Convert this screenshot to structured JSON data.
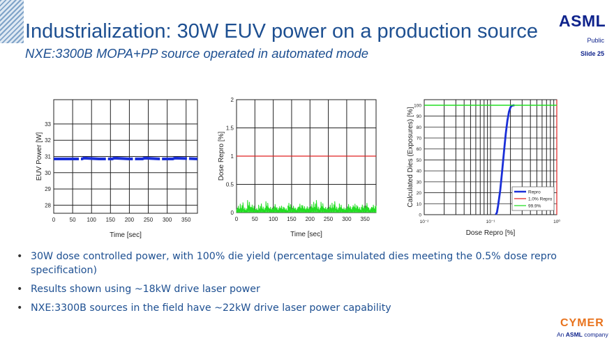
{
  "header": {
    "title": "Industrialization: 30W EUV power on a production source",
    "subtitle": "NXE:3300B MOPA+PP source operated in automated mode",
    "logo": "ASML",
    "classification": "Public",
    "slide_number": "Slide 25"
  },
  "colors": {
    "title": "#1d4f91",
    "power_trace": "#1a2fd8",
    "spec_line": "#e02020",
    "dose_noise": "#22dd22",
    "cymer_orange": "#e8731e"
  },
  "chart_data": [
    {
      "type": "line",
      "xlabel": "Time [sec]",
      "ylabel": "EUV Power  [W]",
      "xlim": [
        0,
        380
      ],
      "ylim": [
        27.5,
        34.5
      ],
      "x_ticks": [
        0,
        50,
        100,
        150,
        200,
        250,
        300,
        350
      ],
      "y_ticks": [
        28,
        29,
        30,
        31,
        32,
        33
      ],
      "series": [
        {
          "x": [
            0,
            40,
            75,
            80,
            120,
            155,
            160,
            200,
            235,
            240,
            280,
            315,
            320,
            380
          ],
          "values": [
            30.85,
            30.85,
            30.85,
            30.9,
            30.85,
            30.85,
            30.9,
            30.85,
            30.85,
            30.9,
            30.85,
            30.85,
            30.9,
            30.85
          ]
        }
      ]
    },
    {
      "type": "line",
      "xlabel": "Time [sec]",
      "ylabel": "Dose Repro [%]",
      "xlim": [
        0,
        380
      ],
      "ylim": [
        0,
        2
      ],
      "x_ticks": [
        0,
        50,
        100,
        150,
        200,
        250,
        300,
        350
      ],
      "y_ticks": [
        0,
        0.5,
        1,
        1.5,
        2
      ],
      "series": [
        {
          "x": [
            0,
            380
          ],
          "values": [
            1,
            1
          ]
        },
        {
          "x": [
            0,
            10,
            20,
            30,
            40,
            50,
            60,
            70,
            80,
            90,
            100,
            110,
            120,
            130,
            140,
            150,
            160,
            170,
            180,
            190,
            200,
            210,
            220,
            230,
            240,
            250,
            260,
            270,
            280,
            290,
            300,
            310,
            320,
            330,
            340,
            350,
            360,
            370,
            380
          ],
          "values": [
            0.12,
            0.18,
            0.1,
            0.22,
            0.14,
            0.08,
            0.16,
            0.12,
            0.2,
            0.1,
            0.15,
            0.11,
            0.14,
            0.09,
            0.17,
            0.12,
            0.1,
            0.18,
            0.13,
            0.11,
            0.15,
            0.22,
            0.12,
            0.19,
            0.1,
            0.14,
            0.2,
            0.12,
            0.16,
            0.09,
            0.15,
            0.13,
            0.18,
            0.11,
            0.14,
            0.17,
            0.1,
            0.16,
            0.12
          ]
        }
      ]
    },
    {
      "type": "line",
      "xlabel": "Dose Repro [%]",
      "ylabel": "Calculated  Dies (Exposures) [%]",
      "x_scale": "log",
      "xlim": [
        0.01,
        1
      ],
      "ylim": [
        0,
        105
      ],
      "x_ticks": [
        "10⁻²",
        "10⁻¹",
        "10⁰"
      ],
      "y_ticks": [
        0,
        10,
        20,
        30,
        40,
        50,
        60,
        70,
        80,
        90,
        100
      ],
      "legend": {
        "placement": "bottom-right",
        "entries": [
          "Repro",
          "1.0% Repro",
          "99.9%"
        ]
      },
      "series": [
        {
          "name": "Repro",
          "x": [
            0.12,
            0.125,
            0.13,
            0.14,
            0.15,
            0.16,
            0.17,
            0.18,
            0.19,
            0.2,
            0.21,
            0.23
          ],
          "values": [
            0,
            2,
            8,
            22,
            40,
            58,
            74,
            86,
            94,
            98,
            99.5,
            100
          ]
        },
        {
          "name": "1.0% Repro",
          "x": [
            1,
            1
          ],
          "values": [
            0,
            105
          ]
        },
        {
          "name": "99.9%",
          "x": [
            0.01,
            1
          ],
          "values": [
            99.9,
            99.9
          ]
        }
      ]
    }
  ],
  "bullets": [
    "30W dose controlled power, with 100% die yield (percentage simulated dies meeting the 0.5% dose repro specification)",
    "Results shown using ~18kW drive laser power",
    "NXE:3300B sources in the field have ~22kW drive laser power capability"
  ],
  "bullet_glyph": "•",
  "footer": {
    "cymer_logo": "CYMER",
    "cymer_prefix": "An",
    "cymer_brand": "ASML",
    "cymer_suffix": "company"
  }
}
